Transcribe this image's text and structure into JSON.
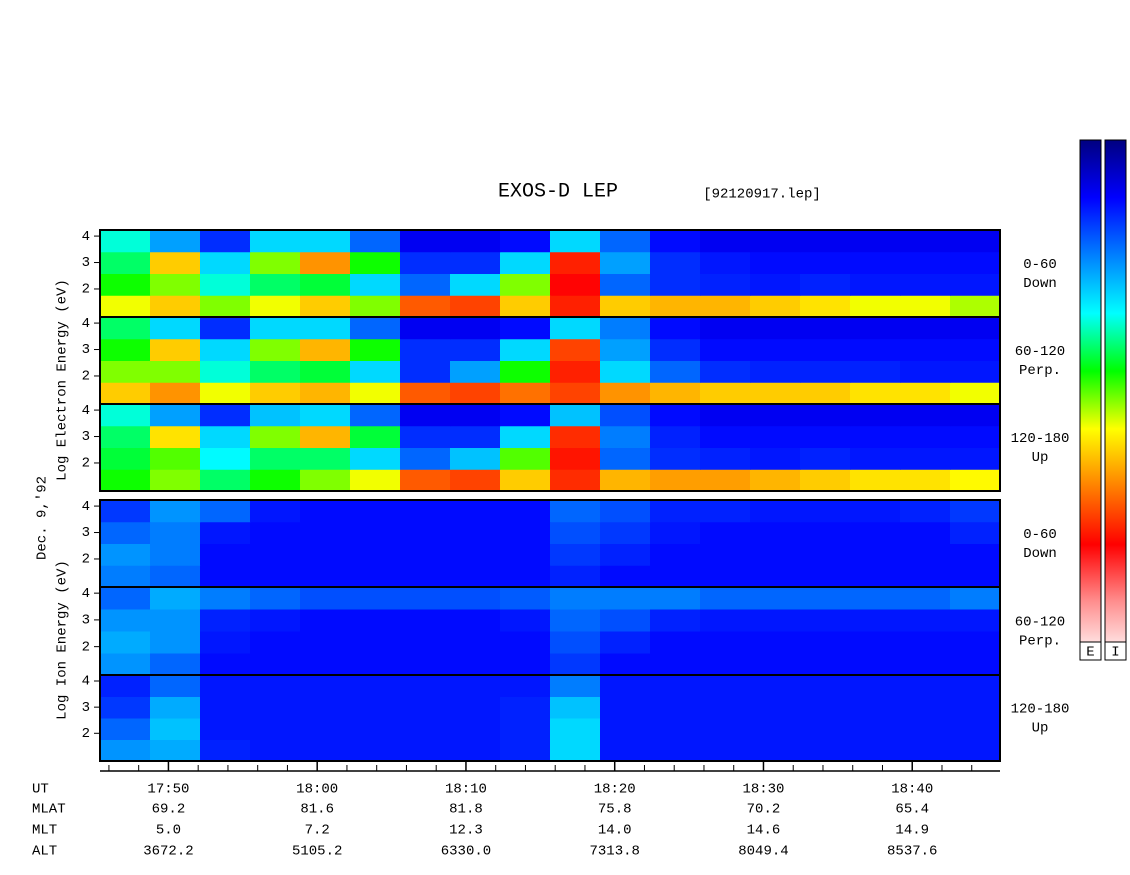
{
  "chart_data": {
    "type": "heatmap",
    "title": "EXOS-D LEP",
    "subtitle": "[92120917.lep]",
    "xlabel": "UT",
    "date": "Dec. 9,'92",
    "ylabels": [
      "Log Electron Energy (eV)",
      "Log Ion Energy (eV)"
    ],
    "xlim": [
      1065.4,
      1125.9
    ],
    "xticks": [
      {
        "value": 1070,
        "label": "17:50"
      },
      {
        "value": 1080,
        "label": "18:00"
      },
      {
        "value": 1090,
        "label": "18:10"
      },
      {
        "value": 1100,
        "label": "18:20"
      },
      {
        "value": 1110,
        "label": "18:30"
      },
      {
        "value": 1120,
        "label": "18:40"
      }
    ],
    "xminor": [
      1066,
      1068,
      1072,
      1074,
      1076,
      1078,
      1082,
      1084,
      1086,
      1088,
      1092,
      1094,
      1096,
      1098,
      1102,
      1104,
      1106,
      1108,
      1112,
      1114,
      1116,
      1118,
      1122,
      1124
    ],
    "ylim": [
      0.94,
      4.23
    ],
    "yticks": [
      2,
      3,
      4
    ],
    "zlim": [
      0,
      1
    ],
    "colormap": [
      "#000080",
      "#0000ff",
      "#0080ff",
      "#00ffff",
      "#00ff00",
      "#ffff00",
      "#ff8000",
      "#ff0000",
      "#ff9090",
      "#ffffff"
    ],
    "colorbar_labels": [
      "E",
      "I"
    ],
    "orbit": [
      {
        "label": "MLAT",
        "values": [
          "69.2",
          "81.6",
          "81.8",
          "75.8",
          "70.2",
          "65.4"
        ]
      },
      {
        "label": "MLT",
        "values": [
          "5.0",
          "7.2",
          "12.3",
          "14.0",
          "14.6",
          "14.9"
        ]
      },
      {
        "label": "ALT",
        "values": [
          "3672.2",
          "5105.2",
          "6330.0",
          "7313.8",
          "8049.4",
          "8537.6"
        ]
      }
    ],
    "panels": [
      {
        "pitch": "0-60",
        "direction": "Down",
        "z": [
          [
            0.55,
            0.6,
            0.5,
            0.55,
            0.6,
            0.5,
            0.7,
            0.72,
            0.6,
            0.75,
            0.6,
            0.62,
            0.62,
            0.6,
            0.58,
            0.55,
            0.55,
            0.52
          ],
          [
            0.45,
            0.5,
            0.35,
            0.4,
            0.42,
            0.3,
            0.2,
            0.3,
            0.5,
            0.78,
            0.2,
            0.15,
            0.14,
            0.13,
            0.14,
            0.13,
            0.13,
            0.13
          ],
          [
            0.4,
            0.6,
            0.3,
            0.5,
            0.65,
            0.45,
            0.15,
            0.15,
            0.3,
            0.75,
            0.25,
            0.15,
            0.13,
            0.12,
            0.12,
            0.12,
            0.12,
            0.12
          ],
          [
            0.35,
            0.25,
            0.15,
            0.3,
            0.3,
            0.2,
            0.1,
            0.1,
            0.12,
            0.3,
            0.2,
            0.12,
            0.1,
            0.1,
            0.1,
            0.1,
            0.1,
            0.1
          ]
        ]
      },
      {
        "pitch": "60-120",
        "direction": "Perp.",
        "z": [
          [
            0.6,
            0.65,
            0.55,
            0.6,
            0.62,
            0.55,
            0.7,
            0.72,
            0.68,
            0.72,
            0.65,
            0.62,
            0.6,
            0.6,
            0.6,
            0.58,
            0.58,
            0.55
          ],
          [
            0.5,
            0.5,
            0.35,
            0.4,
            0.42,
            0.3,
            0.15,
            0.25,
            0.45,
            0.75,
            0.3,
            0.2,
            0.15,
            0.14,
            0.14,
            0.14,
            0.13,
            0.13
          ],
          [
            0.45,
            0.6,
            0.3,
            0.5,
            0.62,
            0.45,
            0.15,
            0.15,
            0.3,
            0.72,
            0.25,
            0.15,
            0.12,
            0.12,
            0.12,
            0.12,
            0.12,
            0.12
          ],
          [
            0.4,
            0.3,
            0.15,
            0.3,
            0.3,
            0.2,
            0.1,
            0.1,
            0.12,
            0.3,
            0.22,
            0.12,
            0.1,
            0.1,
            0.1,
            0.1,
            0.1,
            0.1
          ]
        ]
      },
      {
        "pitch": "120-180",
        "direction": "Up",
        "z": [
          [
            0.45,
            0.5,
            0.4,
            0.45,
            0.5,
            0.55,
            0.7,
            0.72,
            0.6,
            0.74,
            0.62,
            0.64,
            0.64,
            0.62,
            0.6,
            0.58,
            0.58,
            0.56
          ],
          [
            0.42,
            0.48,
            0.33,
            0.4,
            0.4,
            0.3,
            0.2,
            0.28,
            0.48,
            0.76,
            0.2,
            0.15,
            0.14,
            0.13,
            0.14,
            0.13,
            0.13,
            0.13
          ],
          [
            0.4,
            0.58,
            0.3,
            0.5,
            0.62,
            0.42,
            0.15,
            0.15,
            0.3,
            0.74,
            0.22,
            0.14,
            0.12,
            0.12,
            0.12,
            0.12,
            0.12,
            0.12
          ],
          [
            0.35,
            0.25,
            0.15,
            0.28,
            0.3,
            0.2,
            0.1,
            0.1,
            0.12,
            0.28,
            0.18,
            0.12,
            0.1,
            0.1,
            0.1,
            0.1,
            0.1,
            0.1
          ]
        ]
      },
      {
        "pitch": "0-60",
        "direction": "Down",
        "z": [
          [
            0.22,
            0.2,
            0.12,
            0.12,
            0.12,
            0.12,
            0.12,
            0.12,
            0.12,
            0.14,
            0.12,
            0.12,
            0.12,
            0.12,
            0.12,
            0.12,
            0.12,
            0.12
          ],
          [
            0.24,
            0.22,
            0.12,
            0.12,
            0.12,
            0.12,
            0.12,
            0.12,
            0.12,
            0.16,
            0.14,
            0.12,
            0.12,
            0.12,
            0.12,
            0.12,
            0.12,
            0.12
          ],
          [
            0.2,
            0.22,
            0.13,
            0.12,
            0.12,
            0.12,
            0.12,
            0.12,
            0.12,
            0.18,
            0.16,
            0.13,
            0.12,
            0.12,
            0.12,
            0.12,
            0.12,
            0.14
          ],
          [
            0.16,
            0.24,
            0.2,
            0.13,
            0.12,
            0.12,
            0.12,
            0.12,
            0.12,
            0.2,
            0.18,
            0.14,
            0.14,
            0.13,
            0.13,
            0.13,
            0.14,
            0.16
          ]
        ]
      },
      {
        "pitch": "60-120",
        "direction": "Perp.",
        "z": [
          [
            0.24,
            0.2,
            0.12,
            0.12,
            0.12,
            0.12,
            0.12,
            0.12,
            0.12,
            0.16,
            0.12,
            0.12,
            0.12,
            0.12,
            0.12,
            0.12,
            0.12,
            0.12
          ],
          [
            0.26,
            0.24,
            0.13,
            0.12,
            0.12,
            0.12,
            0.12,
            0.12,
            0.12,
            0.18,
            0.14,
            0.12,
            0.12,
            0.12,
            0.12,
            0.12,
            0.12,
            0.12
          ],
          [
            0.24,
            0.24,
            0.14,
            0.13,
            0.12,
            0.12,
            0.12,
            0.12,
            0.13,
            0.2,
            0.18,
            0.14,
            0.13,
            0.13,
            0.13,
            0.13,
            0.13,
            0.13
          ],
          [
            0.2,
            0.26,
            0.22,
            0.2,
            0.18,
            0.18,
            0.18,
            0.18,
            0.19,
            0.22,
            0.22,
            0.22,
            0.2,
            0.2,
            0.2,
            0.2,
            0.2,
            0.22
          ]
        ]
      },
      {
        "pitch": "120-180",
        "direction": "Up",
        "z": [
          [
            0.24,
            0.26,
            0.14,
            0.13,
            0.13,
            0.13,
            0.13,
            0.13,
            0.14,
            0.3,
            0.13,
            0.13,
            0.13,
            0.13,
            0.13,
            0.13,
            0.13,
            0.13
          ],
          [
            0.2,
            0.28,
            0.13,
            0.13,
            0.13,
            0.13,
            0.13,
            0.13,
            0.14,
            0.3,
            0.13,
            0.13,
            0.13,
            0.13,
            0.13,
            0.13,
            0.13,
            0.13
          ],
          [
            0.16,
            0.26,
            0.13,
            0.13,
            0.13,
            0.13,
            0.13,
            0.13,
            0.14,
            0.28,
            0.13,
            0.13,
            0.13,
            0.13,
            0.13,
            0.13,
            0.13,
            0.13
          ],
          [
            0.14,
            0.2,
            0.13,
            0.13,
            0.13,
            0.13,
            0.13,
            0.13,
            0.13,
            0.22,
            0.13,
            0.13,
            0.13,
            0.13,
            0.13,
            0.13,
            0.13,
            0.13
          ]
        ]
      }
    ]
  }
}
